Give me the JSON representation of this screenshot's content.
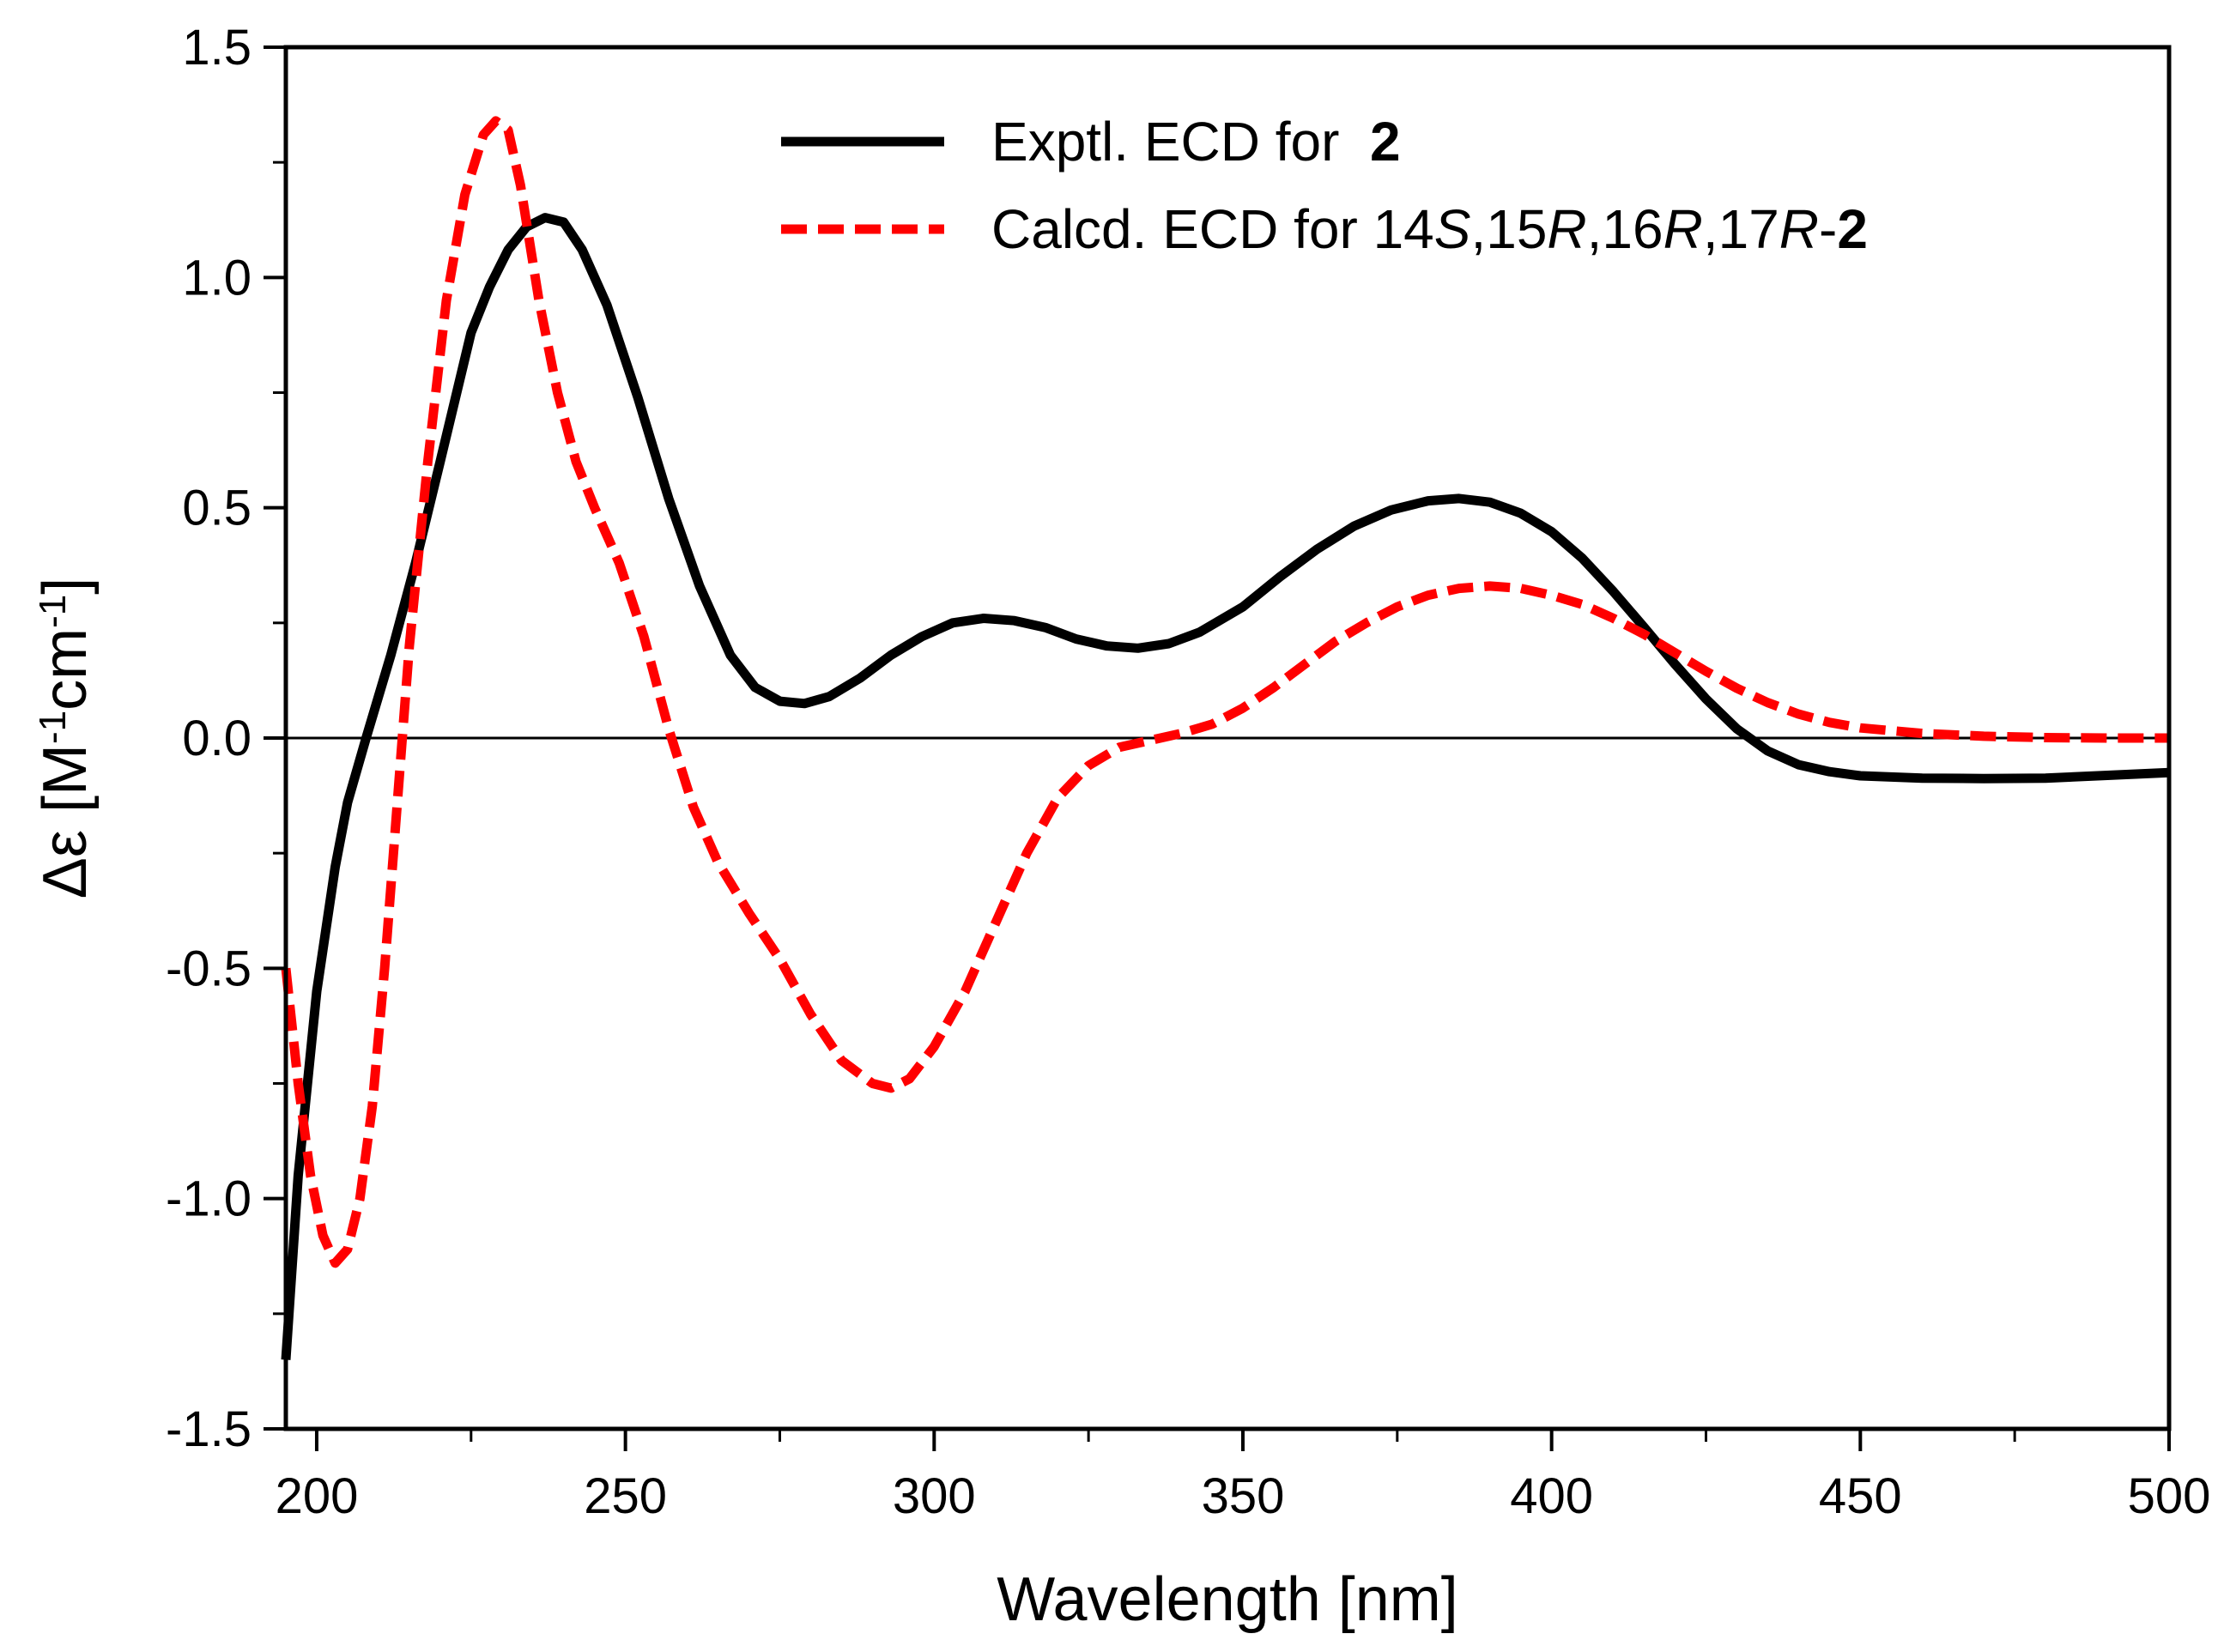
{
  "chart_data": {
    "type": "line",
    "title": "",
    "xlabel": "Wavelength [nm]",
    "ylabel": {
      "prefix": "Δε [M",
      "sup1": "-1",
      "mid": "cm",
      "sup2": "-1",
      "suffix": "]"
    },
    "xlim": [
      195,
      500
    ],
    "ylim": [
      -1.5,
      1.5
    ],
    "x_ticks": [
      {
        "value": 200,
        "label": "200"
      },
      {
        "value": 250,
        "label": "250"
      },
      {
        "value": 300,
        "label": "300"
      },
      {
        "value": 350,
        "label": "350"
      },
      {
        "value": 400,
        "label": "400"
      },
      {
        "value": 450,
        "label": "450"
      },
      {
        "value": 500,
        "label": "500"
      }
    ],
    "x_minor_ticks": [
      225,
      275,
      325,
      375,
      425,
      475
    ],
    "y_ticks": [
      {
        "value": 1.5,
        "label": "1.5"
      },
      {
        "value": 1.0,
        "label": "1.0"
      },
      {
        "value": 0.5,
        "label": "0.5"
      },
      {
        "value": 0.0,
        "label": "0.0"
      },
      {
        "value": -0.5,
        "label": "-0.5"
      },
      {
        "value": -1.0,
        "label": "-1.0"
      },
      {
        "value": -1.5,
        "label": "-1.5"
      }
    ],
    "y_minor_ticks": [
      1.25,
      0.75,
      0.25,
      -0.25,
      -0.75,
      -1.25
    ],
    "zero_line": true,
    "legend_position": "top-right",
    "series": [
      {
        "name": "Exptl. ECD for 2",
        "legend": [
          {
            "text": "Exptl. ECD for  ",
            "style": "normal"
          },
          {
            "text": "2",
            "style": "bold"
          }
        ],
        "color": "#000000",
        "dash": "solid",
        "points": [
          [
            195,
            -1.35
          ],
          [
            197,
            -0.95
          ],
          [
            200,
            -0.55
          ],
          [
            203,
            -0.28
          ],
          [
            205,
            -0.14
          ],
          [
            208,
            0.0
          ],
          [
            212,
            0.18
          ],
          [
            216,
            0.38
          ],
          [
            220,
            0.6
          ],
          [
            225,
            0.88
          ],
          [
            228,
            0.98
          ],
          [
            231,
            1.06
          ],
          [
            234,
            1.11
          ],
          [
            237,
            1.13
          ],
          [
            240,
            1.12
          ],
          [
            243,
            1.06
          ],
          [
            247,
            0.94
          ],
          [
            252,
            0.74
          ],
          [
            257,
            0.52
          ],
          [
            262,
            0.33
          ],
          [
            267,
            0.18
          ],
          [
            271,
            0.11
          ],
          [
            275,
            0.08
          ],
          [
            279,
            0.075
          ],
          [
            283,
            0.09
          ],
          [
            288,
            0.13
          ],
          [
            293,
            0.18
          ],
          [
            298,
            0.22
          ],
          [
            303,
            0.25
          ],
          [
            308,
            0.26
          ],
          [
            313,
            0.255
          ],
          [
            318,
            0.24
          ],
          [
            323,
            0.215
          ],
          [
            328,
            0.2
          ],
          [
            333,
            0.195
          ],
          [
            338,
            0.205
          ],
          [
            343,
            0.23
          ],
          [
            350,
            0.285
          ],
          [
            356,
            0.35
          ],
          [
            362,
            0.41
          ],
          [
            368,
            0.46
          ],
          [
            374,
            0.495
          ],
          [
            380,
            0.515
          ],
          [
            385,
            0.52
          ],
          [
            390,
            0.512
          ],
          [
            395,
            0.488
          ],
          [
            400,
            0.448
          ],
          [
            405,
            0.39
          ],
          [
            410,
            0.318
          ],
          [
            415,
            0.24
          ],
          [
            420,
            0.16
          ],
          [
            425,
            0.085
          ],
          [
            430,
            0.02
          ],
          [
            435,
            -0.028
          ],
          [
            440,
            -0.058
          ],
          [
            445,
            -0.073
          ],
          [
            450,
            -0.082
          ],
          [
            460,
            -0.087
          ],
          [
            470,
            -0.088
          ],
          [
            480,
            -0.087
          ],
          [
            490,
            -0.081
          ],
          [
            500,
            -0.075
          ]
        ]
      },
      {
        "name": "Calcd. ECD for 14S,15R,16R,17R-2",
        "legend": [
          {
            "text": "Calcd. ECD for 14",
            "style": "normal"
          },
          {
            "text": "S",
            "style": "italic"
          },
          {
            "text": ",15",
            "style": "normal"
          },
          {
            "text": "R",
            "style": "italic"
          },
          {
            "text": ",16",
            "style": "normal"
          },
          {
            "text": "R",
            "style": "italic"
          },
          {
            "text": ",17",
            "style": "normal"
          },
          {
            "text": "R",
            "style": "italic"
          },
          {
            "text": "-",
            "style": "normal"
          },
          {
            "text": "2",
            "style": "bold"
          }
        ],
        "color": "#ff0000",
        "dash": "dashed",
        "points": [
          [
            195,
            -0.5
          ],
          [
            197,
            -0.75
          ],
          [
            199,
            -0.95
          ],
          [
            201,
            -1.08
          ],
          [
            203,
            -1.14
          ],
          [
            205,
            -1.11
          ],
          [
            207,
            -1.0
          ],
          [
            209,
            -0.8
          ],
          [
            211,
            -0.5
          ],
          [
            213,
            -0.15
          ],
          [
            215,
            0.2
          ],
          [
            218,
            0.6
          ],
          [
            221,
            0.95
          ],
          [
            224,
            1.18
          ],
          [
            227,
            1.31
          ],
          [
            229,
            1.34
          ],
          [
            231,
            1.32
          ],
          [
            233,
            1.2
          ],
          [
            236,
            0.95
          ],
          [
            239,
            0.75
          ],
          [
            242,
            0.6
          ],
          [
            245,
            0.5
          ],
          [
            249,
            0.38
          ],
          [
            253,
            0.22
          ],
          [
            257,
            0.02
          ],
          [
            261,
            -0.15
          ],
          [
            265,
            -0.27
          ],
          [
            270,
            -0.38
          ],
          [
            275,
            -0.48
          ],
          [
            280,
            -0.6
          ],
          [
            285,
            -0.7
          ],
          [
            290,
            -0.75
          ],
          [
            293,
            -0.76
          ],
          [
            296,
            -0.74
          ],
          [
            300,
            -0.67
          ],
          [
            305,
            -0.55
          ],
          [
            310,
            -0.4
          ],
          [
            315,
            -0.25
          ],
          [
            320,
            -0.13
          ],
          [
            325,
            -0.06
          ],
          [
            330,
            -0.02
          ],
          [
            335,
            -0.005
          ],
          [
            340,
            0.01
          ],
          [
            345,
            0.03
          ],
          [
            350,
            0.065
          ],
          [
            355,
            0.11
          ],
          [
            360,
            0.16
          ],
          [
            365,
            0.21
          ],
          [
            370,
            0.25
          ],
          [
            375,
            0.285
          ],
          [
            380,
            0.31
          ],
          [
            385,
            0.325
          ],
          [
            390,
            0.33
          ],
          [
            395,
            0.325
          ],
          [
            400,
            0.31
          ],
          [
            405,
            0.29
          ],
          [
            410,
            0.26
          ],
          [
            415,
            0.225
          ],
          [
            420,
            0.185
          ],
          [
            425,
            0.145
          ],
          [
            430,
            0.108
          ],
          [
            435,
            0.077
          ],
          [
            440,
            0.052
          ],
          [
            445,
            0.034
          ],
          [
            450,
            0.022
          ],
          [
            460,
            0.01
          ],
          [
            470,
            0.004
          ],
          [
            480,
            0.001
          ],
          [
            490,
            0.0
          ],
          [
            500,
            0.0
          ]
        ]
      }
    ]
  }
}
